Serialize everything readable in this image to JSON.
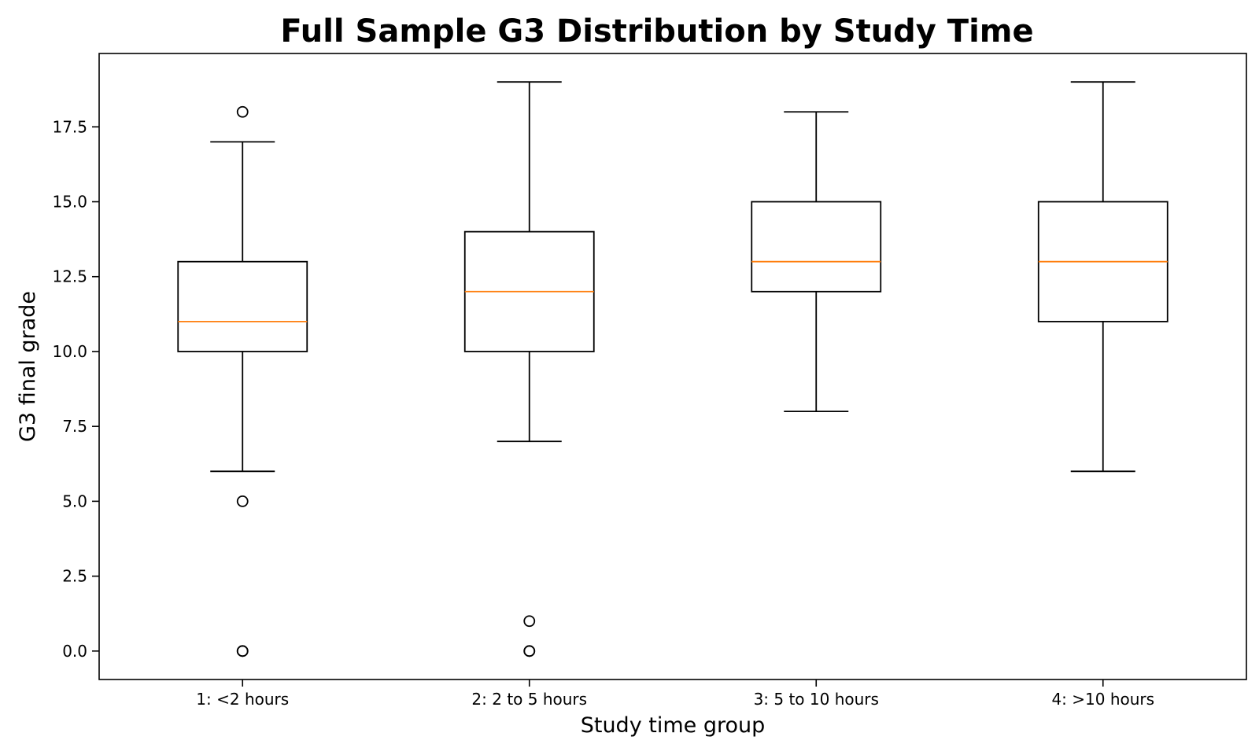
{
  "chart_data": {
    "type": "boxplot",
    "title": "Full Sample G3 Distribution by Study Time",
    "xlabel": "Study time group",
    "ylabel": "G3 final grade",
    "categories": [
      "1: <2 hours",
      "2: 2 to 5 hours",
      "3: 5 to 10 hours",
      "4: >10 hours"
    ],
    "boxes": [
      {
        "whisker_low": 6,
        "q1": 10,
        "median": 11,
        "q3": 13,
        "whisker_high": 17,
        "outliers": [
          18,
          5,
          0,
          0
        ]
      },
      {
        "whisker_low": 7,
        "q1": 10,
        "median": 12,
        "q3": 14,
        "whisker_high": 19,
        "outliers": [
          1,
          0,
          0
        ]
      },
      {
        "whisker_low": 8,
        "q1": 12,
        "median": 13,
        "q3": 15,
        "whisker_high": 18,
        "outliers": []
      },
      {
        "whisker_low": 6,
        "q1": 11,
        "median": 13,
        "q3": 15,
        "whisker_high": 19,
        "outliers": []
      }
    ],
    "y_ticks": [
      0,
      2.5,
      5,
      7.5,
      10,
      12.5,
      15,
      17.5
    ],
    "y_tick_labels": [
      "0.0",
      "2.5",
      "5.0",
      "7.5",
      "10.0",
      "12.5",
      "15.0",
      "17.5"
    ],
    "ylim": [
      -0.95,
      19.95
    ],
    "grid": false,
    "legend": "none",
    "colors": {
      "box": "#000000",
      "median": "#ff7f0e",
      "outlier": "#000000",
      "axis": "#000000"
    }
  }
}
